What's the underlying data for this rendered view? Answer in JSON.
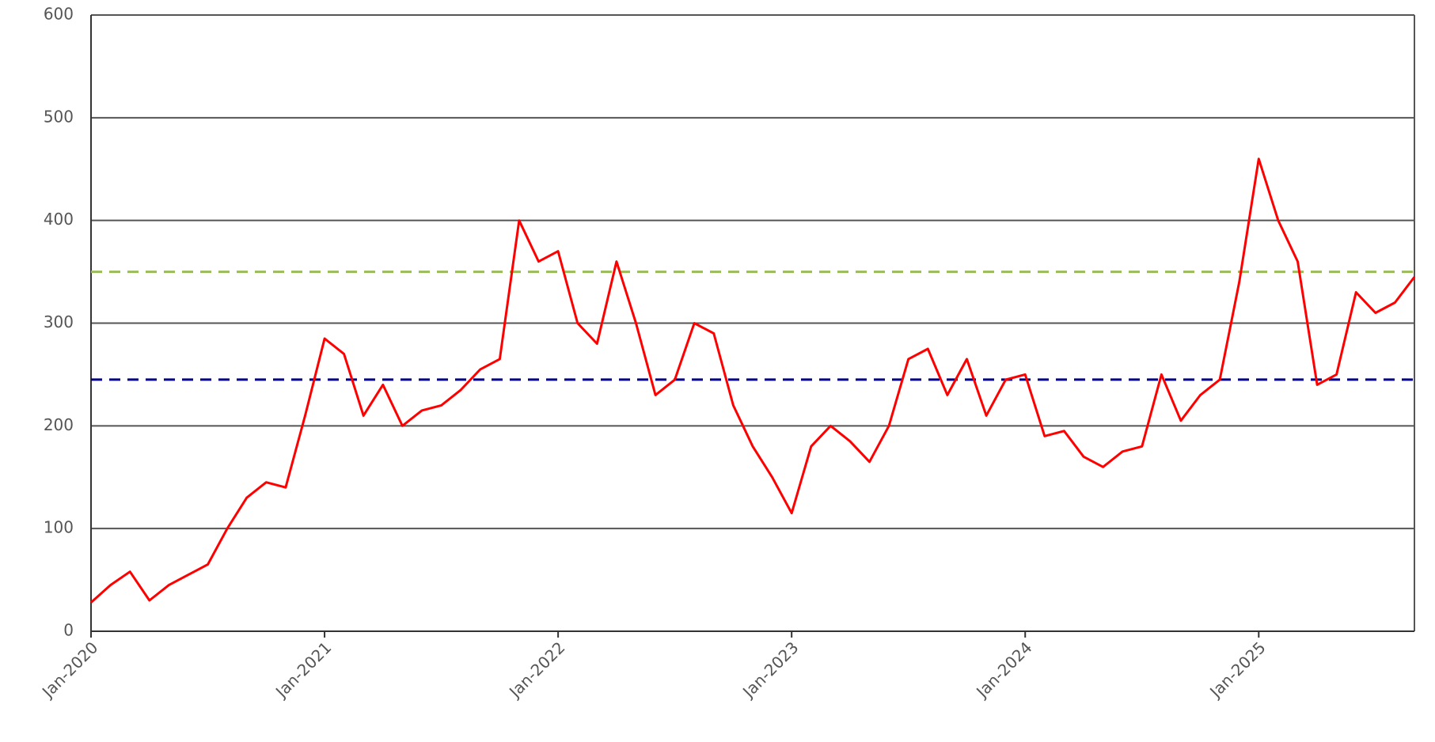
{
  "chart_data": {
    "type": "line",
    "x": [
      "2020-01",
      "2020-02",
      "2020-03",
      "2020-04",
      "2020-05",
      "2020-06",
      "2020-07",
      "2020-08",
      "2020-09",
      "2020-10",
      "2020-11",
      "2020-12",
      "2021-01",
      "2021-02",
      "2021-03",
      "2021-04",
      "2021-05",
      "2021-06",
      "2021-07",
      "2021-08",
      "2021-09",
      "2021-10",
      "2021-11",
      "2021-12",
      "2022-01",
      "2022-02",
      "2022-03",
      "2022-04",
      "2022-05",
      "2022-06",
      "2022-07",
      "2022-08",
      "2022-09",
      "2022-10",
      "2022-11",
      "2022-12",
      "2023-01",
      "2023-02",
      "2023-03",
      "2023-04",
      "2023-05",
      "2023-06",
      "2023-07",
      "2023-08",
      "2023-09",
      "2023-10",
      "2023-11",
      "2023-12",
      "2024-01",
      "2024-02",
      "2024-03",
      "2024-04",
      "2024-05",
      "2024-06",
      "2024-07",
      "2024-08",
      "2024-09",
      "2024-10",
      "2024-11",
      "2024-12",
      "2025-01",
      "2025-02",
      "2025-03",
      "2025-04",
      "2025-05",
      "2025-06",
      "2025-07",
      "2025-08",
      "2025-09"
    ],
    "series": [
      {
        "color": "#ff0000",
        "values": [
          28,
          45,
          58,
          30,
          45,
          55,
          65,
          100,
          130,
          145,
          140,
          210,
          285,
          270,
          210,
          240,
          200,
          215,
          220,
          235,
          255,
          265,
          400,
          360,
          370,
          300,
          280,
          360,
          300,
          230,
          245,
          300,
          290,
          220,
          180,
          150,
          115,
          180,
          200,
          185,
          165,
          200,
          265,
          275,
          230,
          265,
          210,
          245,
          250,
          190,
          195,
          170,
          160,
          175,
          180,
          250,
          205,
          230,
          245,
          340,
          460,
          400,
          360,
          240,
          250,
          330,
          310,
          320,
          345
        ]
      }
    ],
    "reference_lines": [
      {
        "value": 350,
        "color": "#9bbb59"
      },
      {
        "value": 245,
        "color": "#000080"
      }
    ],
    "xlim": [
      "2020-01",
      "2025-09"
    ],
    "xticks": [
      {
        "value": "2020-01",
        "label": "Jan-2020"
      },
      {
        "value": "2021-01",
        "label": "Jan-2021"
      },
      {
        "value": "2022-01",
        "label": "Jan-2022"
      },
      {
        "value": "2023-01",
        "label": "Jan-2023"
      },
      {
        "value": "2024-01",
        "label": "Jan-2024"
      },
      {
        "value": "2025-01",
        "label": "Jan-2025"
      }
    ],
    "ylim": [
      0,
      600
    ],
    "yticks": [
      0,
      100,
      200,
      300,
      400,
      500,
      600
    ],
    "grid": true
  }
}
